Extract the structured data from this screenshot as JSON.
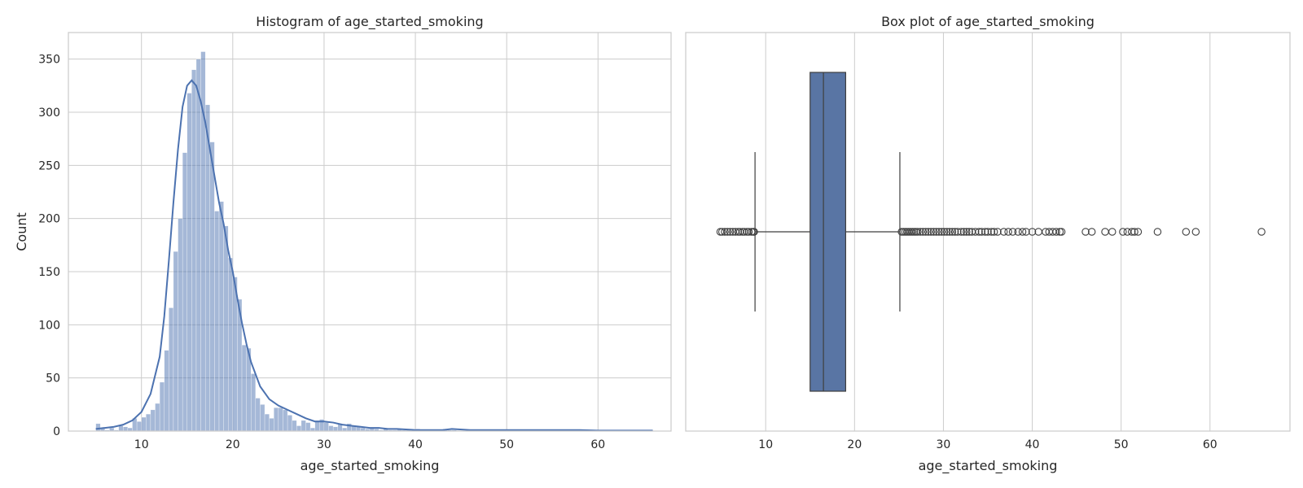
{
  "chart_data": [
    {
      "type": "bar",
      "title": "Histogram of age_started_smoking",
      "xlabel": "age_started_smoking",
      "ylabel": "Count",
      "xlim": [
        2.0,
        68.0
      ],
      "ylim": [
        0,
        375
      ],
      "xticks": [
        10,
        20,
        30,
        40,
        50,
        60
      ],
      "yticks": [
        0,
        50,
        100,
        150,
        200,
        250,
        300,
        350
      ],
      "grid": true,
      "bin_start": 5.0,
      "bin_width": 0.5,
      "bar_color": "#4c72b0",
      "values": [
        7,
        3,
        1,
        3,
        1,
        5,
        4,
        3,
        12,
        9,
        13,
        16,
        20,
        26,
        46,
        76,
        116,
        169,
        200,
        262,
        318,
        340,
        350,
        357,
        307,
        272,
        207,
        216,
        193,
        163,
        145,
        124,
        81,
        78,
        54,
        31,
        25,
        16,
        12,
        22,
        22,
        20,
        15,
        10,
        5,
        10,
        8,
        3,
        10,
        11,
        8,
        5,
        4,
        7,
        3,
        7,
        5,
        4,
        3,
        2,
        3,
        2,
        1,
        2,
        1,
        1,
        2,
        1,
        1,
        0,
        2,
        1,
        1,
        0,
        0,
        1,
        2,
        1,
        1,
        0,
        0,
        0,
        0,
        1,
        0,
        0,
        0,
        0,
        0,
        1,
        0,
        0,
        1,
        0,
        0,
        1,
        1,
        0,
        1,
        0,
        0,
        1,
        0,
        0,
        0,
        0,
        0,
        1,
        0,
        0,
        0,
        0,
        0,
        0,
        0,
        0,
        0,
        0,
        0,
        0,
        1
      ],
      "kde": {
        "color": "#4c72b0",
        "x": [
          5,
          6,
          7,
          8,
          9,
          10,
          11,
          12,
          12.5,
          13,
          13.5,
          14,
          14.5,
          15,
          15.5,
          16,
          16.5,
          17,
          17.5,
          18,
          18.5,
          19,
          19.5,
          20,
          20.5,
          21,
          21.5,
          22,
          23,
          24,
          25,
          26,
          27,
          28,
          29,
          30,
          31,
          32,
          33,
          34,
          35,
          36,
          37,
          38,
          40,
          42,
          43,
          44,
          46,
          48,
          50,
          51,
          52,
          54,
          56,
          58,
          60,
          62,
          64,
          66
        ],
        "y": [
          2,
          3,
          4,
          6,
          10,
          18,
          35,
          70,
          108,
          160,
          215,
          265,
          305,
          325,
          330,
          325,
          310,
          290,
          265,
          240,
          215,
          195,
          170,
          150,
          125,
          102,
          82,
          65,
          42,
          30,
          24,
          20,
          16,
          12,
          9,
          9,
          8,
          6,
          5,
          4,
          3,
          3,
          2,
          2,
          1,
          1,
          1,
          2,
          1,
          1,
          1,
          1,
          1,
          1,
          1,
          1,
          0.5,
          0.5,
          0.5,
          0.5
        ]
      }
    },
    {
      "type": "box",
      "title": "Box plot of age_started_smoking",
      "xlabel": "age_started_smoking",
      "xlim": [
        1.0,
        69.0
      ],
      "xticks": [
        10,
        20,
        30,
        40,
        50,
        60
      ],
      "grid": true,
      "box_color": "#5975a4",
      "line_color": "#3f3f3f",
      "whisker_low": 8.8,
      "q1": 15.0,
      "median": 16.5,
      "q3": 19.0,
      "whisker_high": 25.1,
      "outliers": [
        4.9,
        5.1,
        5.4,
        5.7,
        6.0,
        6.3,
        6.6,
        6.9,
        7.1,
        7.4,
        7.6,
        7.9,
        8.1,
        8.4,
        8.6,
        8.7,
        25.3,
        25.5,
        25.7,
        25.9,
        26.1,
        26.3,
        26.5,
        26.7,
        26.9,
        27.1,
        27.4,
        27.7,
        28.0,
        28.3,
        28.6,
        28.9,
        29.2,
        29.5,
        29.8,
        30.1,
        30.4,
        30.7,
        31.0,
        31.3,
        31.6,
        32.0,
        32.3,
        32.6,
        32.9,
        33.2,
        33.6,
        34.0,
        34.3,
        34.7,
        35.0,
        35.4,
        35.7,
        36.1,
        36.8,
        37.3,
        37.8,
        38.4,
        38.9,
        39.3,
        40.0,
        40.7,
        41.5,
        41.9,
        42.3,
        42.7,
        43.1,
        43.3,
        46.0,
        46.7,
        48.2,
        49.0,
        50.2,
        50.7,
        51.2,
        51.5,
        51.9,
        54.1,
        57.3,
        58.4,
        65.8
      ]
    }
  ]
}
